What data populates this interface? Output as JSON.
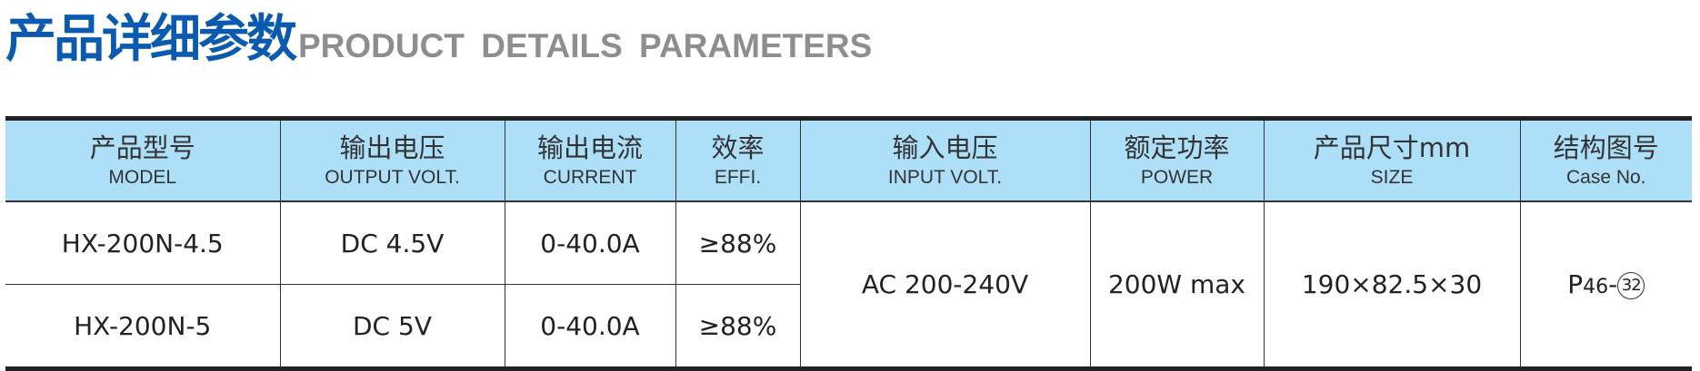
{
  "title": {
    "cn": "产品详细参数",
    "en": "PRODUCT DETAILS PARAMETERS"
  },
  "colors": {
    "title_blue": "#0a5bb0",
    "title_grey": "#8e8e8e",
    "header_bg": "#ade0f8"
  },
  "table": {
    "headers": [
      {
        "cn": "产品型号",
        "en": "MODEL"
      },
      {
        "cn": "输出电压",
        "en": "OUTPUT VOLT."
      },
      {
        "cn": "输出电流",
        "en": "CURRENT"
      },
      {
        "cn": "效率",
        "en": "EFFI."
      },
      {
        "cn": "输入电压",
        "en": "INPUT VOLT."
      },
      {
        "cn": "额定功率",
        "en": "POWER"
      },
      {
        "cn": "产品尺寸mm",
        "en": "SIZE"
      },
      {
        "cn": "结构图号",
        "en": "Case No."
      }
    ],
    "rows": [
      {
        "model": "HX-200N-4.5",
        "output_volt": "DC 4.5V",
        "current": "0-40.0A",
        "effi": "≥88%"
      },
      {
        "model": "HX-200N-5",
        "output_volt": "DC 5V",
        "current": "0-40.0A",
        "effi": "≥88%"
      }
    ],
    "shared": {
      "input_volt": "AC 200-240V",
      "power": "200W max",
      "size": "190×82.5×30",
      "case_prefix": "P",
      "case_page": "46",
      "case_sep": "-",
      "case_num": "32"
    }
  }
}
